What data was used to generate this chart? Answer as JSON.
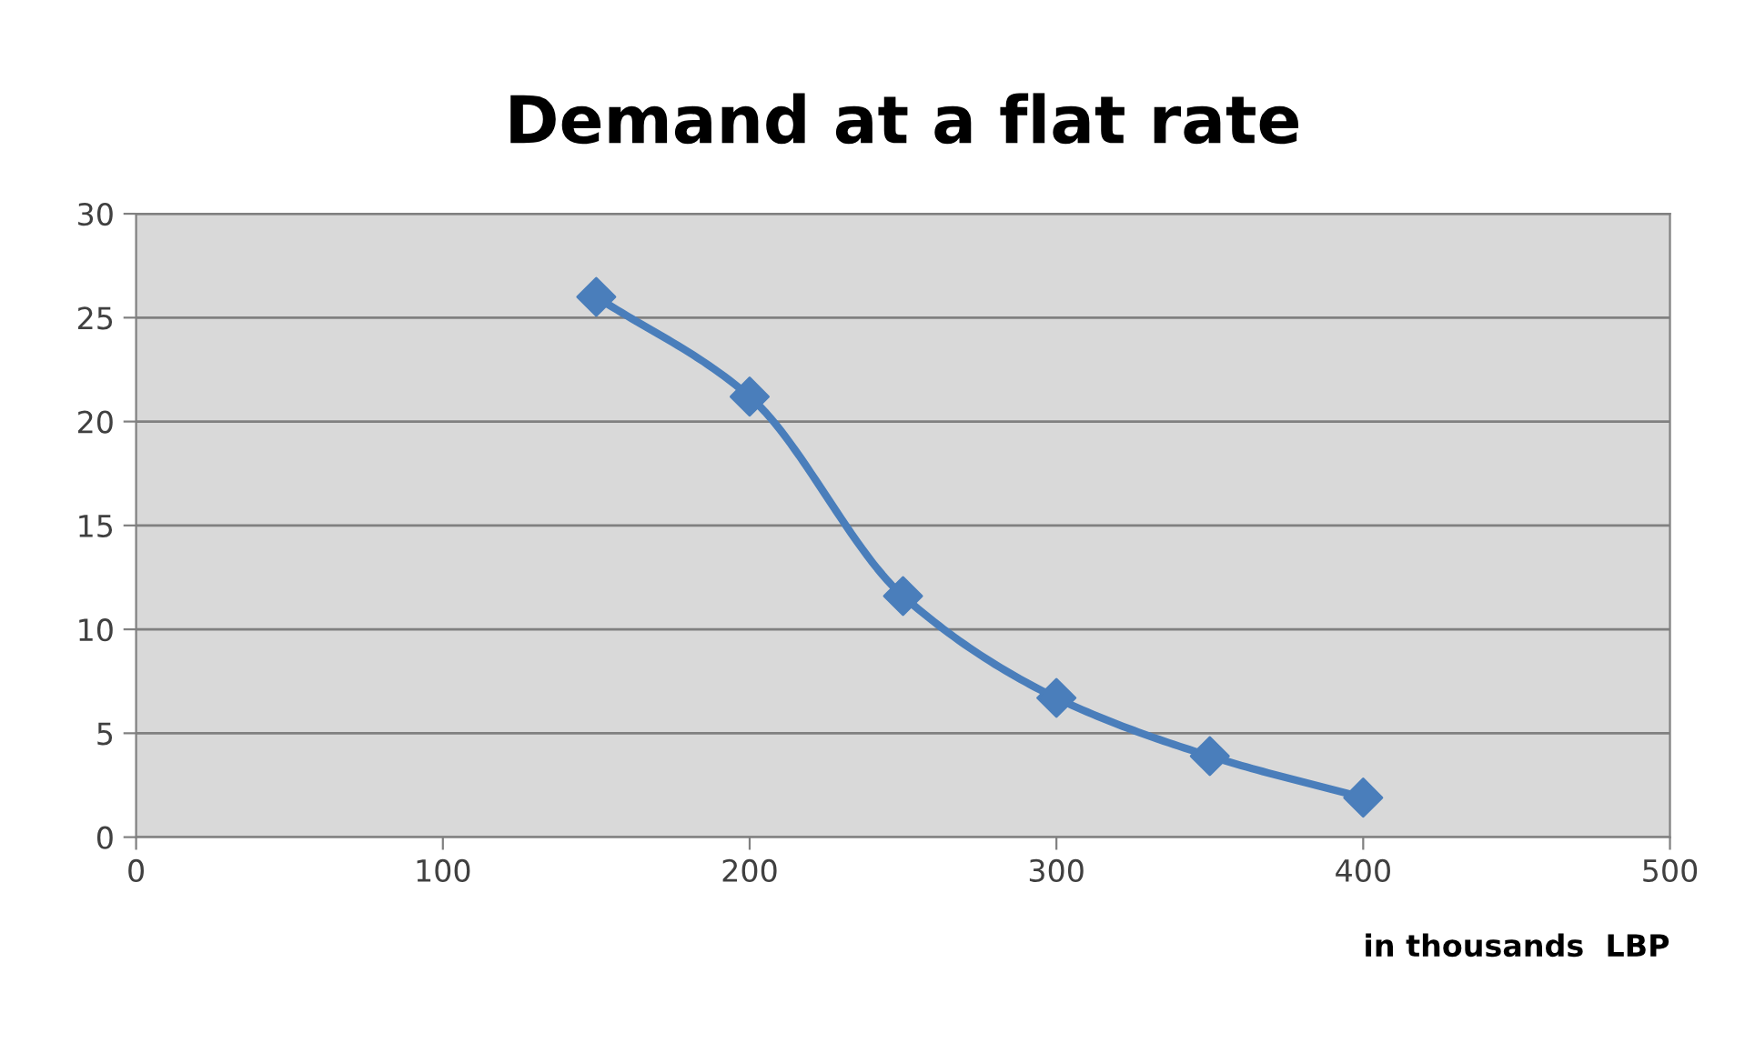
{
  "chart_data": {
    "type": "line",
    "title": "Demand at a flat rate",
    "xlabel": "in thousands  LBP",
    "x": [
      150,
      200,
      250,
      300,
      350,
      400
    ],
    "series": [
      {
        "color": "#4a7ebb",
        "values": [
          26,
          21.2,
          11.6,
          6.7,
          3.9,
          1.9
        ]
      }
    ],
    "xlim": [
      0,
      500
    ],
    "xticks": [
      0,
      100,
      200,
      300,
      400,
      500
    ],
    "ylim": [
      0,
      30
    ],
    "yticks": [
      0,
      5,
      10,
      15,
      20,
      25,
      30
    ],
    "grid": "y",
    "legend": false,
    "marker": "diamond",
    "line_style": "solid"
  }
}
